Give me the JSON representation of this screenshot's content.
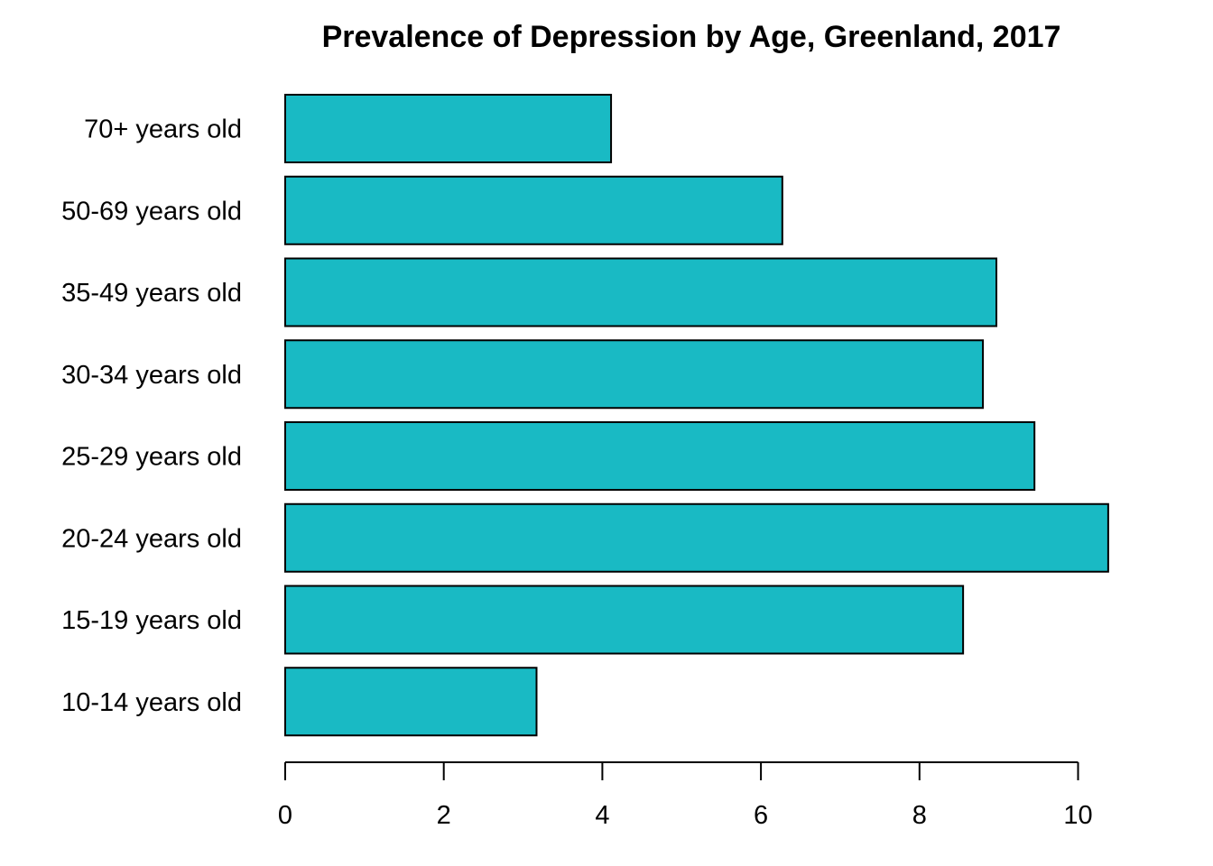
{
  "chart_data": {
    "type": "bar",
    "orientation": "horizontal",
    "title": "Prevalence of Depression by Age, Greenland, 2017",
    "xlabel": "",
    "ylabel": "",
    "categories": [
      "10-14 years old",
      "15-19 years old",
      "20-24 years old",
      "25-29 years old",
      "30-34 years old",
      "35-49 years old",
      "50-69 years old",
      "70+ years old"
    ],
    "values": [
      3.17,
      8.55,
      10.38,
      9.45,
      8.8,
      8.97,
      6.27,
      4.11
    ],
    "xlim": [
      0,
      10
    ],
    "xticks": [
      0,
      2,
      4,
      6,
      8,
      10
    ],
    "bar_color": "#19BAC4",
    "bar_stroke": "#000000",
    "grid": false,
    "legend": "none"
  }
}
